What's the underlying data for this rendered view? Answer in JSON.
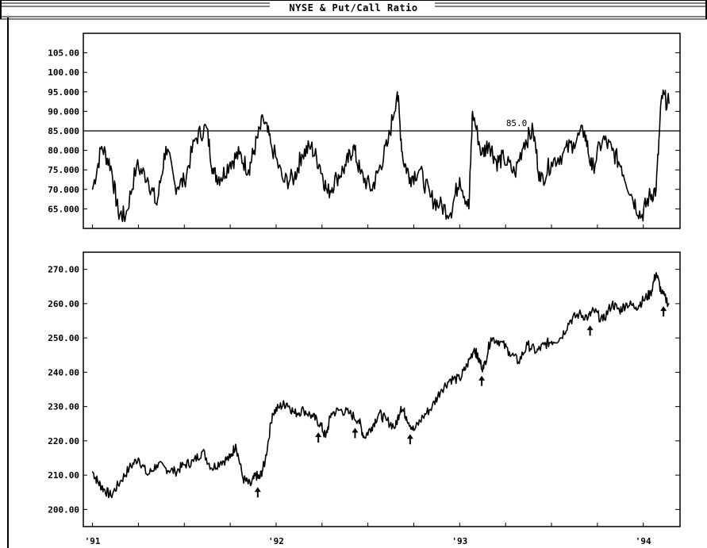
{
  "window": {
    "title": "NYSE & Put/Call Ratio"
  },
  "chart_data": [
    {
      "type": "line",
      "title": "",
      "xlabel": "",
      "ylabel": "",
      "ylim": [
        60,
        110
      ],
      "yticks": [
        "105.00",
        "100.00",
        "95.000",
        "90.000",
        "85.000",
        "80.000",
        "75.000",
        "70.000",
        "65.000"
      ],
      "ytick_values": [
        105,
        100,
        95,
        90,
        85,
        80,
        75,
        70,
        65
      ],
      "reference_line": {
        "value": 85.0,
        "label": "85.0"
      },
      "series": [
        {
          "x": [
            1991.0,
            1991.05,
            1991.1,
            1991.14,
            1991.18,
            1991.24,
            1991.3,
            1991.35,
            1991.4,
            1991.45,
            1991.5,
            1991.56,
            1991.62,
            1991.66,
            1991.7,
            1991.75,
            1991.8,
            1991.85,
            1991.88,
            1991.93,
            1991.97,
            1992.04,
            1992.1,
            1992.14,
            1992.19,
            1992.24,
            1992.28,
            1992.33,
            1992.38,
            1992.42,
            1992.46,
            1992.52,
            1992.56,
            1992.61,
            1992.66,
            1992.69,
            1992.73,
            1992.78,
            1992.84,
            1992.89,
            1992.95,
            1993.0,
            1993.05,
            1993.07,
            1993.12,
            1993.16,
            1993.2,
            1993.24,
            1993.3,
            1993.35,
            1993.4,
            1993.44,
            1993.5,
            1993.56,
            1993.62,
            1993.68,
            1993.72,
            1993.78,
            1993.83,
            1993.88,
            1993.94,
            1993.99,
            1994.03,
            1994.07,
            1994.1,
            1994.14
          ],
          "y": [
            70,
            81,
            76,
            64,
            63,
            76,
            73,
            66,
            81,
            71,
            72,
            83,
            86,
            74,
            73,
            77,
            79,
            75,
            80,
            88,
            82,
            72,
            73,
            79,
            81,
            76,
            69,
            73,
            76,
            81,
            74,
            70,
            75,
            82,
            95,
            78,
            73,
            75,
            68,
            66,
            64,
            73,
            65,
            90,
            79,
            82,
            77,
            78,
            74,
            82,
            85,
            72,
            77,
            79,
            82,
            85,
            75,
            83,
            80,
            76,
            68,
            63,
            68,
            70,
            94,
            92
          ]
        }
      ]
    },
    {
      "type": "line",
      "title": "",
      "xlabel": "",
      "ylabel": "",
      "ylim": [
        195,
        275
      ],
      "yticks": [
        "270.00",
        "260.00",
        "250.00",
        "240.00",
        "230.00",
        "220.00",
        "210.00",
        "200.00"
      ],
      "ytick_values": [
        270,
        260,
        250,
        240,
        230,
        220,
        210,
        200
      ],
      "series": [
        {
          "x": [
            1991.0,
            1991.03,
            1991.06,
            1991.1,
            1991.15,
            1991.2,
            1991.25,
            1991.3,
            1991.35,
            1991.4,
            1991.45,
            1991.5,
            1991.55,
            1991.6,
            1991.65,
            1991.7,
            1991.75,
            1991.78,
            1991.82,
            1991.86,
            1991.89,
            1991.91,
            1991.94,
            1991.98,
            1992.02,
            1992.06,
            1992.1,
            1992.15,
            1992.2,
            1992.24,
            1992.27,
            1992.3,
            1992.35,
            1992.4,
            1992.45,
            1992.48,
            1992.52,
            1992.56,
            1992.6,
            1992.65,
            1992.68,
            1992.71,
            1992.75,
            1992.8,
            1992.85,
            1992.9,
            1992.95,
            1993.0,
            1993.04,
            1993.08,
            1993.1,
            1993.13,
            1993.17,
            1993.22,
            1993.27,
            1993.32,
            1993.37,
            1993.42,
            1993.46,
            1993.5,
            1993.55,
            1993.6,
            1993.65,
            1993.7,
            1993.73,
            1993.78,
            1993.83,
            1993.87,
            1993.91,
            1993.96,
            1994.0,
            1994.04,
            1994.07,
            1994.1,
            1994.14
          ],
          "y": [
            211,
            208,
            206,
            204,
            208,
            212,
            215,
            210,
            213,
            212,
            211,
            213,
            214,
            217,
            212,
            214,
            215,
            219,
            209,
            207,
            210,
            209,
            214,
            228,
            230,
            231,
            228,
            229,
            227,
            225,
            221,
            228,
            229,
            228,
            226,
            221,
            224,
            228,
            226,
            224,
            230,
            227,
            223,
            227,
            230,
            235,
            238,
            238,
            242,
            247,
            244,
            241,
            250,
            249,
            246,
            243,
            248,
            246,
            248,
            249,
            250,
            255,
            257,
            256,
            258,
            255,
            260,
            258,
            260,
            259,
            261,
            263,
            269,
            263,
            260
          ]
        }
      ],
      "x_tick_labels": [
        "'91",
        "'92",
        "'93",
        "'94"
      ],
      "x_tick_values": [
        1991,
        1992,
        1993,
        1994
      ],
      "annotations": {
        "marker": "up-arrow",
        "x": [
          1991.9,
          1992.23,
          1992.43,
          1992.73,
          1993.12,
          1993.71,
          1994.11
        ]
      }
    }
  ]
}
